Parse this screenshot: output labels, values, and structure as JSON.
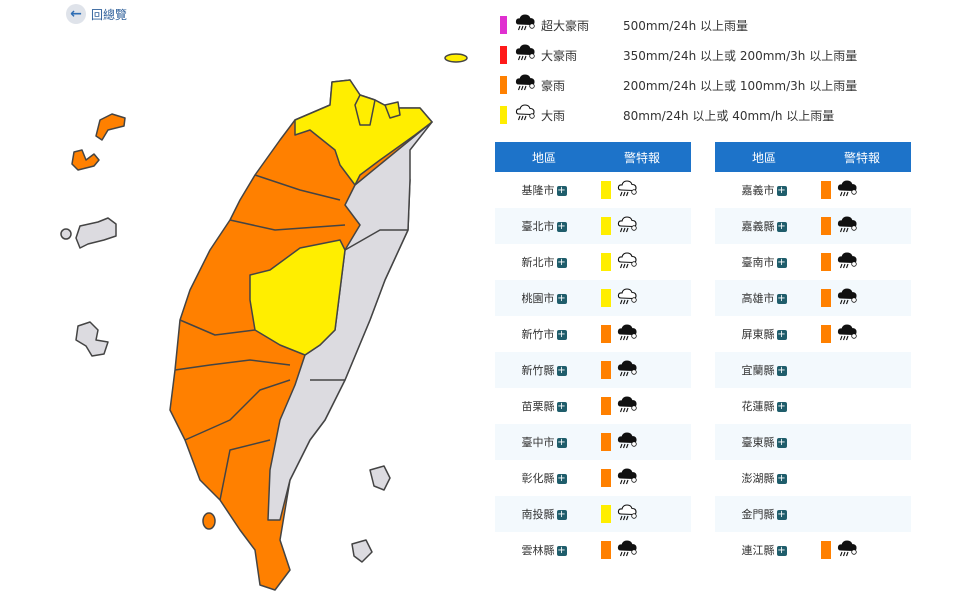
{
  "back": {
    "label": "回總覽",
    "icon": "arrow-left-icon"
  },
  "colors": {
    "super_torrential": "#e030d0",
    "extremely_heavy": "#ff1a1a",
    "heavy": "#ff8000",
    "rain": "#ffee00",
    "none": "#dcdbe0",
    "header": "#1d73c9"
  },
  "legend": [
    {
      "name": "超大豪雨",
      "desc": "500mm/24h 以上雨量",
      "color": "#e030d0",
      "icon": "cloud-rain-dark-icon"
    },
    {
      "name": "大豪雨",
      "desc": "350mm/24h 以上或 200mm/3h 以上雨量",
      "color": "#ff1a1a",
      "icon": "cloud-rain-dark-icon"
    },
    {
      "name": "豪雨",
      "desc": "200mm/24h 以上或 100mm/3h 以上雨量",
      "color": "#ff8000",
      "icon": "cloud-rain-dark-icon"
    },
    {
      "name": "大雨",
      "desc": "80mm/24h 以上或 40mm/h 以上雨量",
      "color": "#ffee00",
      "icon": "cloud-rain-outline-icon"
    }
  ],
  "table_headers": {
    "region": "地區",
    "warning": "警特報"
  },
  "left_rows": [
    {
      "name": "基隆市",
      "level": "大雨"
    },
    {
      "name": "臺北市",
      "level": "大雨"
    },
    {
      "name": "新北市",
      "level": "大雨"
    },
    {
      "name": "桃園市",
      "level": "大雨"
    },
    {
      "name": "新竹市",
      "level": "豪雨"
    },
    {
      "name": "新竹縣",
      "level": "豪雨"
    },
    {
      "name": "苗栗縣",
      "level": "豪雨"
    },
    {
      "name": "臺中市",
      "level": "豪雨"
    },
    {
      "name": "彰化縣",
      "level": "豪雨"
    },
    {
      "name": "南投縣",
      "level": "大雨"
    },
    {
      "name": "雲林縣",
      "level": "豪雨"
    }
  ],
  "right_rows": [
    {
      "name": "嘉義市",
      "level": "豪雨"
    },
    {
      "name": "嘉義縣",
      "level": "豪雨"
    },
    {
      "name": "臺南市",
      "level": "豪雨"
    },
    {
      "name": "高雄市",
      "level": "豪雨"
    },
    {
      "name": "屏東縣",
      "level": "豪雨"
    },
    {
      "name": "宜蘭縣",
      "level": ""
    },
    {
      "name": "花蓮縣",
      "level": ""
    },
    {
      "name": "臺東縣",
      "level": ""
    },
    {
      "name": "澎湖縣",
      "level": ""
    },
    {
      "name": "金門縣",
      "level": ""
    },
    {
      "name": "連江縣",
      "level": "豪雨"
    }
  ]
}
